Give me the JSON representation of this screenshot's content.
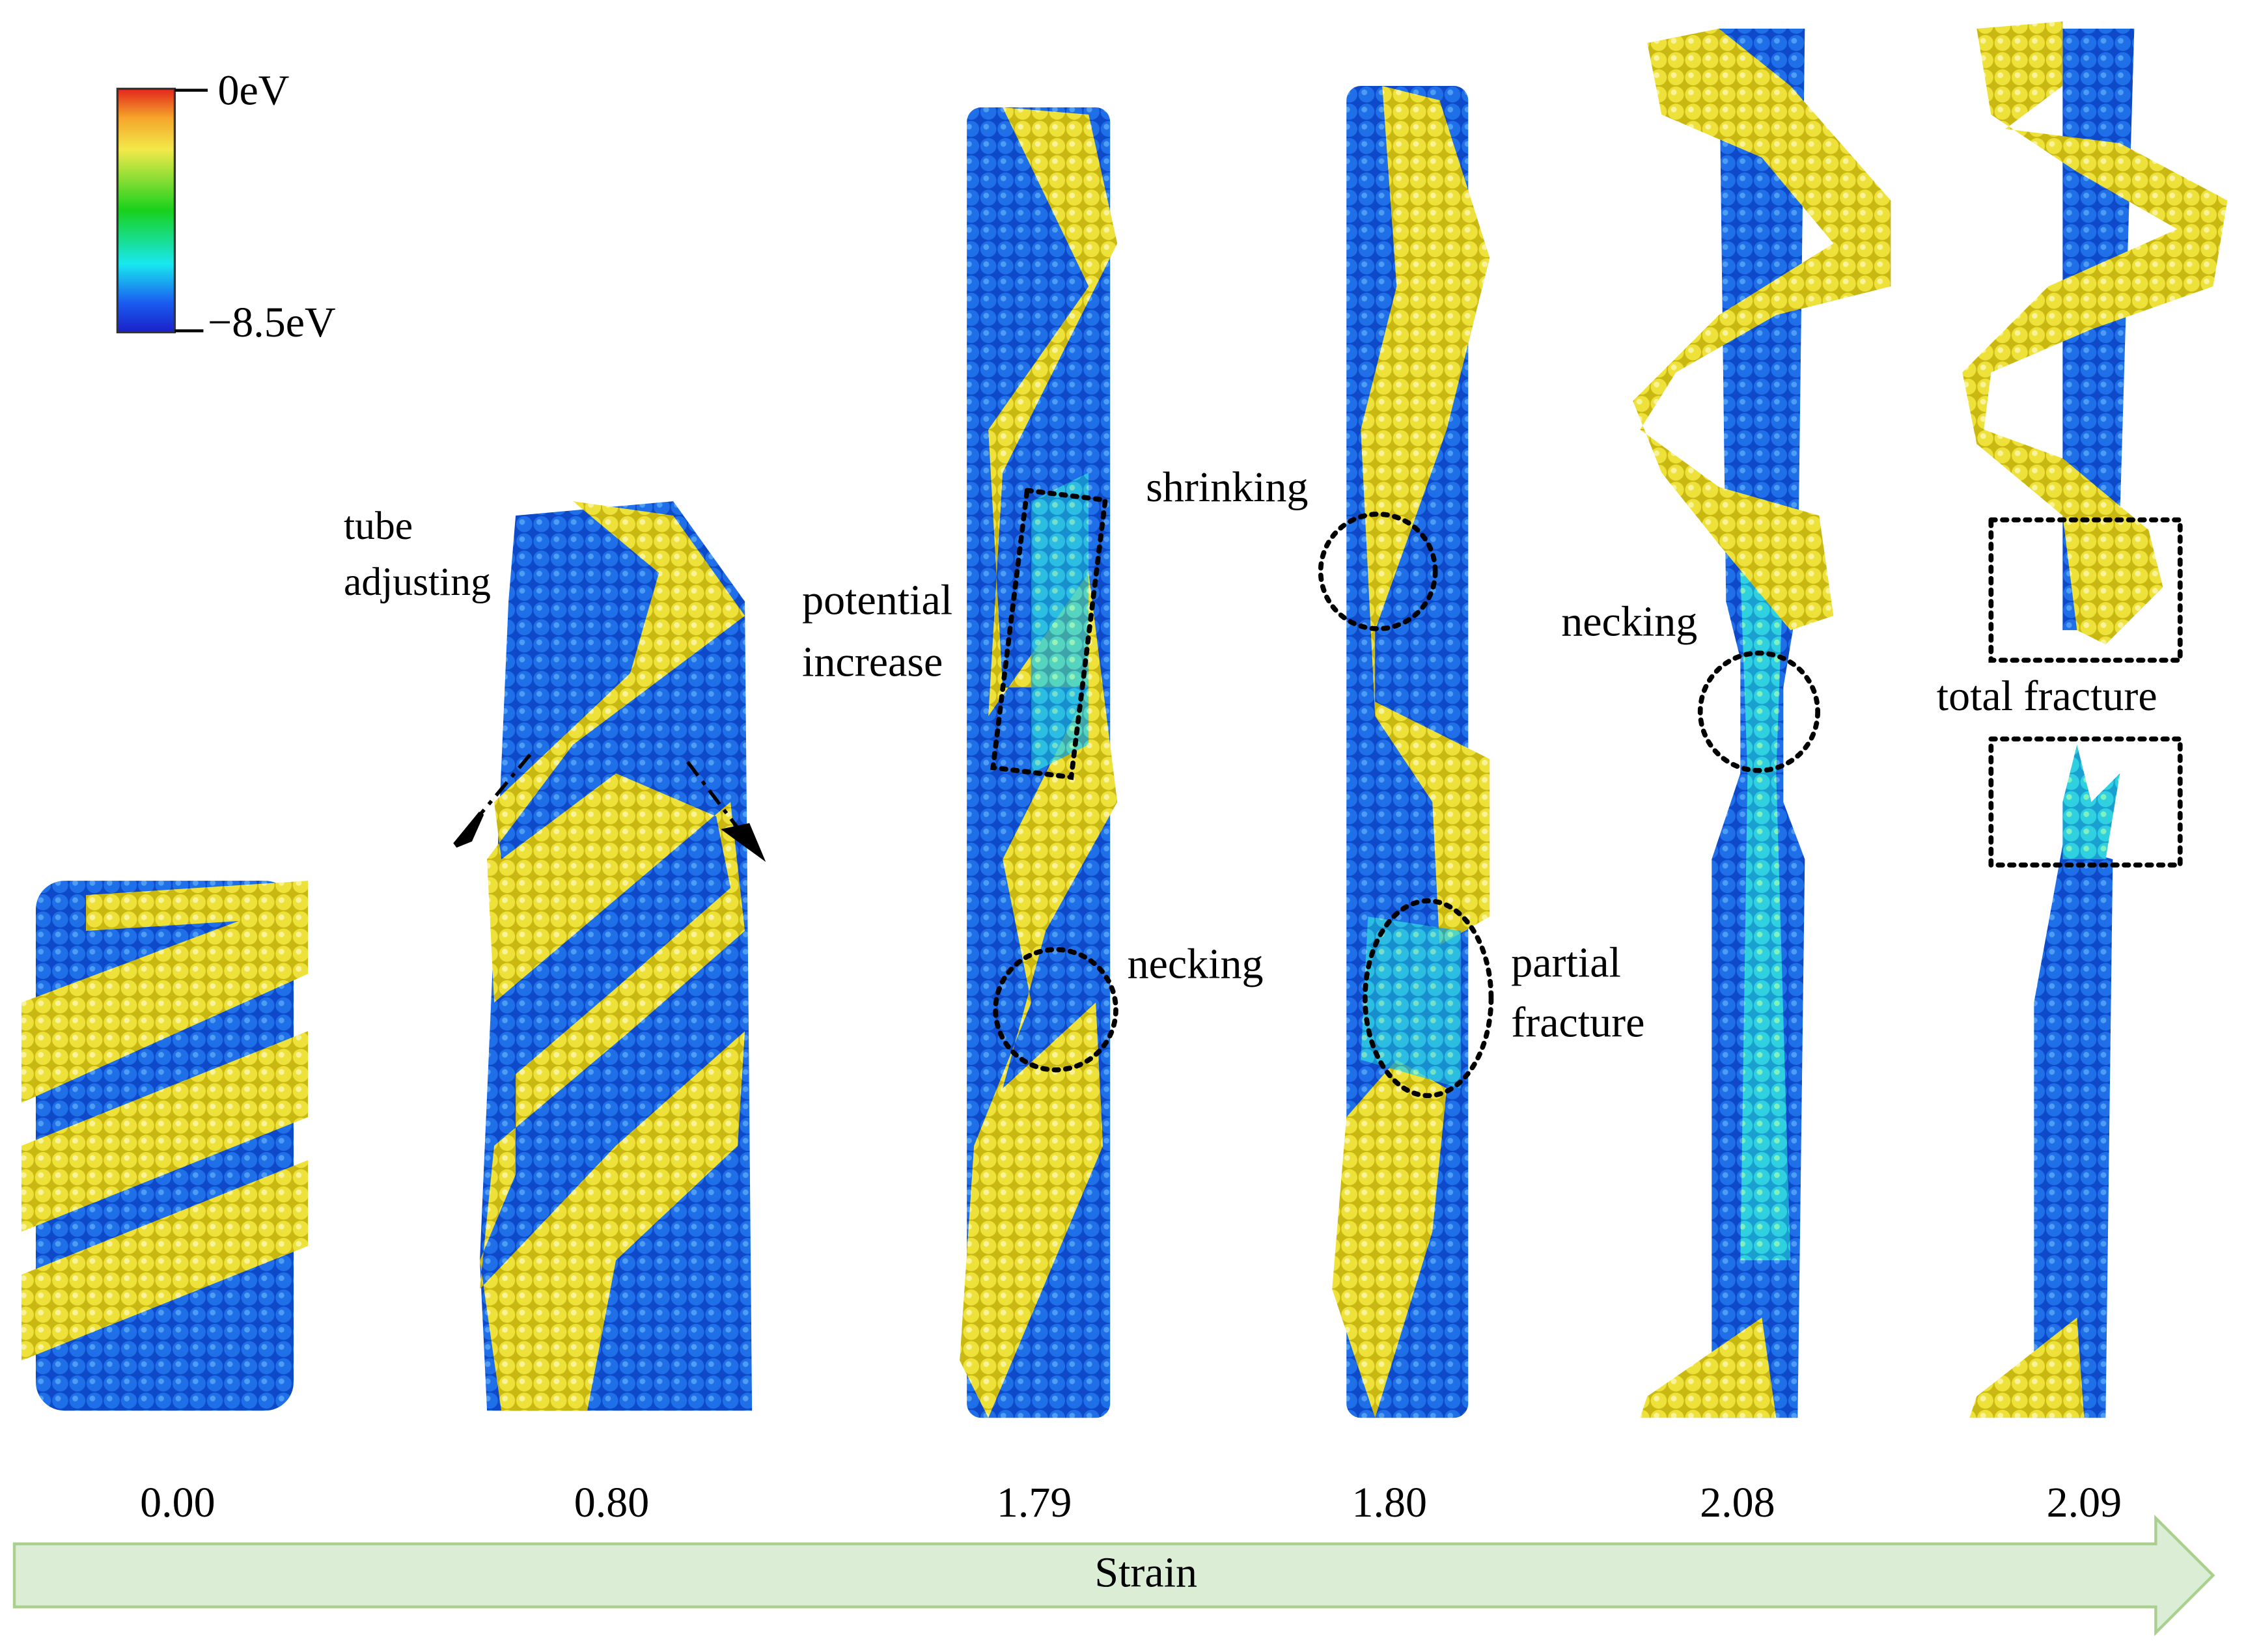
{
  "colorbar": {
    "max_label": "0eV",
    "min_label": "−8.5eV"
  },
  "panels": [
    {
      "strain": "0.00"
    },
    {
      "strain": "0.80"
    },
    {
      "strain": "1.79"
    },
    {
      "strain": "1.80"
    },
    {
      "strain": "2.08"
    },
    {
      "strain": "2.09"
    }
  ],
  "annotations": {
    "tube_adjusting": [
      "tube",
      "adjusting"
    ],
    "potential_increase": [
      "potential",
      "increase"
    ],
    "shrinking": "shrinking",
    "necking_179": "necking",
    "partial_fracture": [
      "partial",
      "fracture"
    ],
    "necking_208": "necking",
    "total_fracture": "total fracture"
  },
  "axis_label": "Strain"
}
